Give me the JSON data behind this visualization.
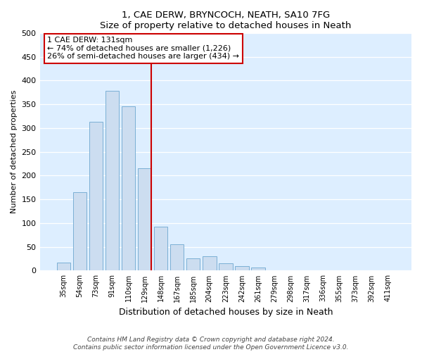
{
  "title": "1, CAE DERW, BRYNCOCH, NEATH, SA10 7FG",
  "subtitle": "Size of property relative to detached houses in Neath",
  "xlabel": "Distribution of detached houses by size in Neath",
  "ylabel": "Number of detached properties",
  "bar_labels": [
    "35sqm",
    "54sqm",
    "73sqm",
    "91sqm",
    "110sqm",
    "129sqm",
    "148sqm",
    "167sqm",
    "185sqm",
    "204sqm",
    "223sqm",
    "242sqm",
    "261sqm",
    "279sqm",
    "298sqm",
    "317sqm",
    "336sqm",
    "355sqm",
    "373sqm",
    "392sqm",
    "411sqm"
  ],
  "bar_values": [
    17,
    165,
    313,
    378,
    346,
    216,
    93,
    56,
    26,
    30,
    15,
    10,
    7,
    0,
    1,
    0,
    0,
    0,
    0,
    0,
    0
  ],
  "bar_color": "#ccddf0",
  "bar_edge_color": "#7bafd4",
  "vline_color": "#cc0000",
  "annotation_line1": "1 CAE DERW: 131sqm",
  "annotation_line2": "← 74% of detached houses are smaller (1,226)",
  "annotation_line3": "26% of semi-detached houses are larger (434) →",
  "ylim": [
    0,
    500
  ],
  "yticks": [
    0,
    50,
    100,
    150,
    200,
    250,
    300,
    350,
    400,
    450,
    500
  ],
  "footer_text": "Contains HM Land Registry data © Crown copyright and database right 2024.\nContains public sector information licensed under the Open Government Licence v3.0.",
  "bg_color": "#ffffff",
  "plot_bg_color": "#ddeeff"
}
